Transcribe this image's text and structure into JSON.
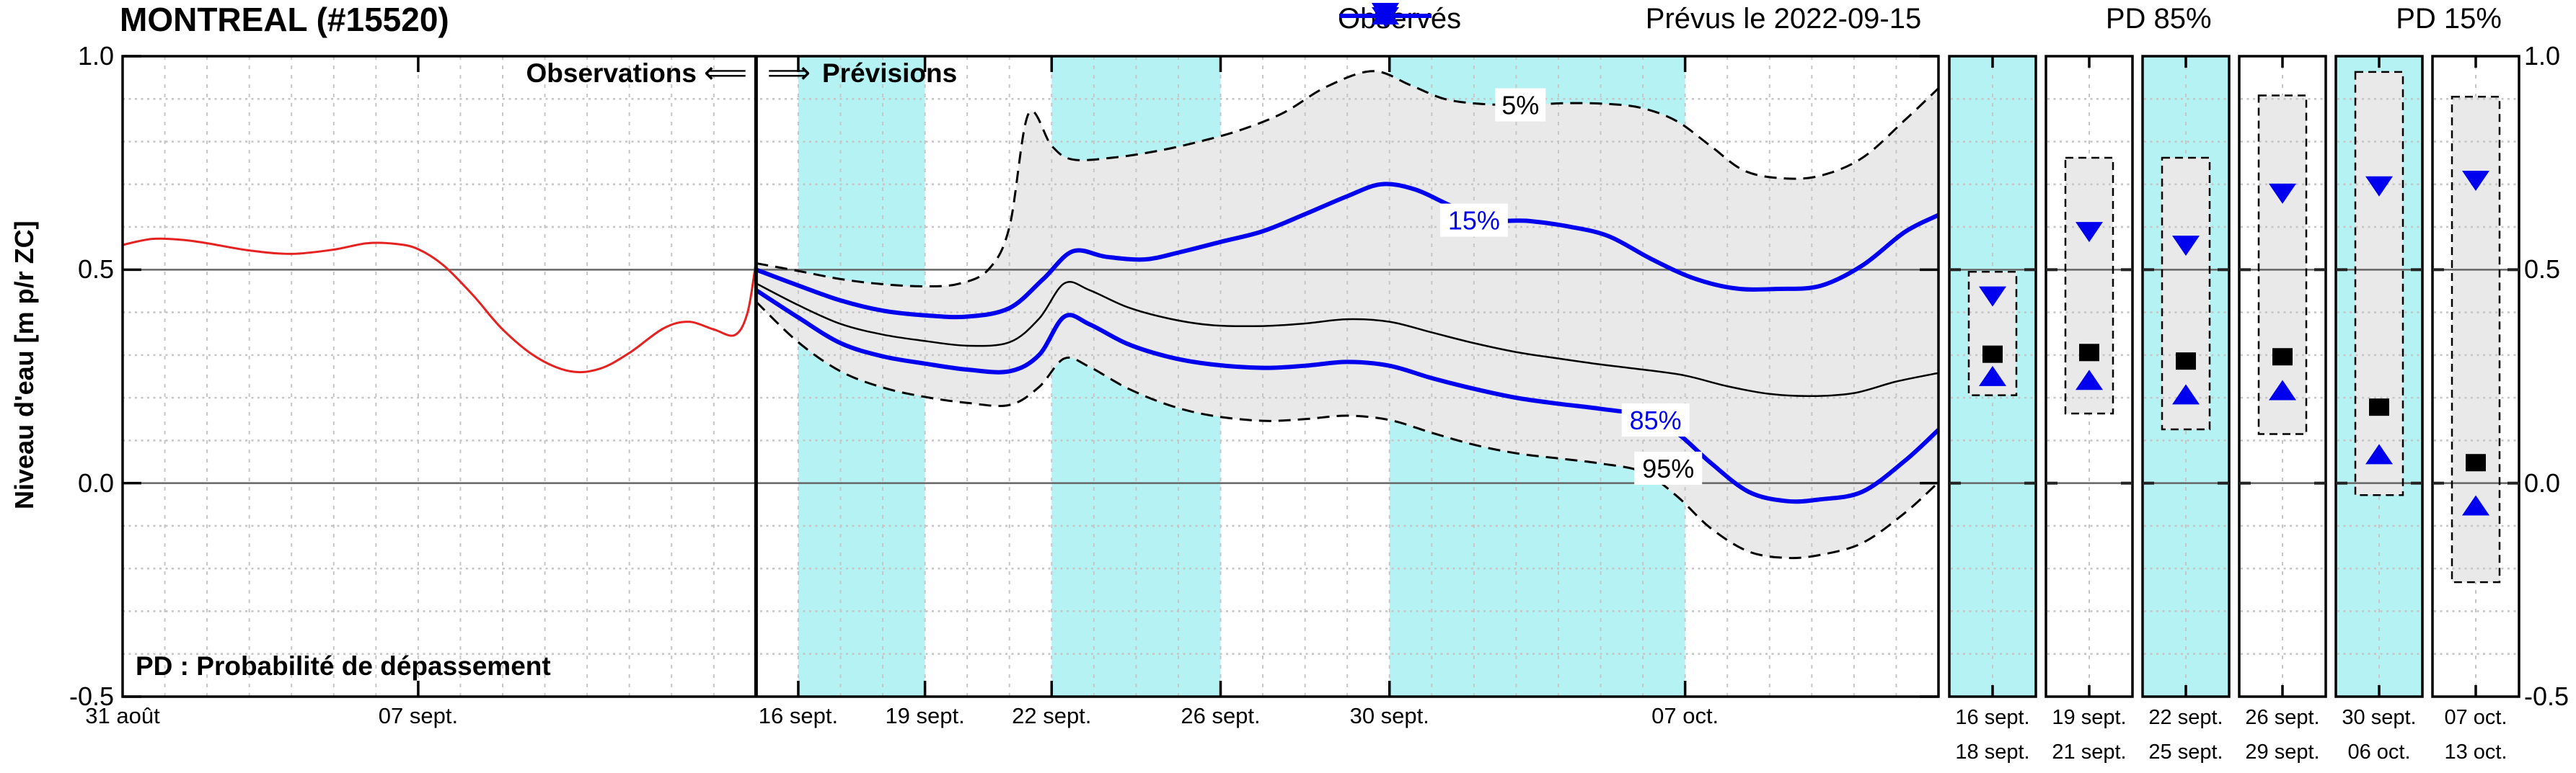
{
  "title": "MONTREAL (#15520)",
  "legend": {
    "items": [
      {
        "label": "Observés",
        "marker": "line",
        "color": "#e62220"
      },
      {
        "label": "Prévus le 2022-09-15",
        "marker": "square",
        "color": "#000000"
      },
      {
        "label": "PD 85%",
        "marker": "triangle-up",
        "color": "#0000ee"
      },
      {
        "label": "PD 15%",
        "marker": "triangle-down",
        "color": "#0000ee"
      }
    ]
  },
  "annotations": {
    "observations": "Observations",
    "arrow_left": "⟸",
    "arrow_right": "⟹",
    "previsions": "Prévisions",
    "pd_note": "PD : Probabilité de dépassement"
  },
  "y_axis": {
    "title": "Niveau d'eau [m p/r ZC]",
    "ticks": [
      {
        "label": "1.0",
        "value": 1.0
      },
      {
        "label": "0.5",
        "value": 0.5
      },
      {
        "label": "0.0",
        "value": 0.0
      },
      {
        "label": "-0.5",
        "value": -0.5
      }
    ]
  },
  "x_axis": {
    "ticks": [
      {
        "label": "31 août",
        "day": 0
      },
      {
        "label": "07 sept.",
        "day": 7
      },
      {
        "label": "16 sept.",
        "day": 16
      },
      {
        "label": "19 sept.",
        "day": 19
      },
      {
        "label": "22 sept.",
        "day": 22
      },
      {
        "label": "26 sept.",
        "day": 26
      },
      {
        "label": "30 sept.",
        "day": 30
      },
      {
        "label": "07 oct.",
        "day": 37
      }
    ]
  },
  "panels": [
    {
      "label_top": "16 sept.",
      "label_bottom": "18 sept.",
      "bg": "cyan",
      "p5": 0.495,
      "p15": 0.437,
      "median": 0.302,
      "p85": 0.251,
      "p95": 0.206
    },
    {
      "label_top": "19 sept.",
      "label_bottom": "21 sept.",
      "bg": "white",
      "p5": 0.762,
      "p15": 0.588,
      "median": 0.306,
      "p85": 0.242,
      "p95": 0.163
    },
    {
      "label_top": "22 sept.",
      "label_bottom": "25 sept.",
      "bg": "cyan",
      "p5": 0.762,
      "p15": 0.556,
      "median": 0.286,
      "p85": 0.208,
      "p95": 0.126
    },
    {
      "label_top": "26 sept.",
      "label_bottom": "29 sept.",
      "bg": "white",
      "p5": 0.908,
      "p15": 0.678,
      "median": 0.296,
      "p85": 0.218,
      "p95": 0.115
    },
    {
      "label_top": "30 sept.",
      "label_bottom": "06 oct.",
      "bg": "cyan",
      "p5": 0.963,
      "p15": 0.695,
      "median": 0.178,
      "p85": 0.068,
      "p95": -0.028
    },
    {
      "label_top": "07 oct.",
      "label_bottom": "13 oct.",
      "bg": "white",
      "p5": 0.905,
      "p15": 0.708,
      "median": 0.048,
      "p85": -0.052,
      "p95": -0.232
    }
  ],
  "colors": {
    "observed": "#e62220",
    "forecast_blue": "#0000ee",
    "black": "#000000",
    "cyan_band": "#b5f2f4",
    "gray_fill": "#e9e9e9",
    "grid": "#c6c6c6",
    "solid_gridline": "#666666"
  },
  "chart_data": {
    "type": "line",
    "title": "MONTREAL (#15520)",
    "ylabel": "Niveau d'eau [m p/r ZC]",
    "ylim": [
      -0.5,
      1.0
    ],
    "x_unit": "days since 2022-08-31",
    "x_range_days": [
      0,
      43
    ],
    "forecast_issue_day": 15,
    "forecast_issue_date": "2022-09-15",
    "grid": "on",
    "legend_position": "top-right",
    "highlight_bands_days": [
      [
        16,
        19
      ],
      [
        22,
        26
      ],
      [
        30,
        37
      ]
    ],
    "curve_labels": [
      {
        "text": "5%",
        "day": 33.1,
        "value": 0.886,
        "color": "#000000",
        "w": 70
      },
      {
        "text": "15%",
        "day": 32.0,
        "value": 0.616,
        "color": "#0000ee",
        "w": 94
      },
      {
        "text": "85%",
        "day": 36.3,
        "value": 0.148,
        "color": "#0000ee",
        "w": 94
      },
      {
        "text": "95%",
        "day": 36.6,
        "value": 0.035,
        "color": "#000000",
        "w": 94
      }
    ],
    "series": [
      {
        "name": "Observés",
        "role": "observed",
        "color": "#e62220",
        "width": 3,
        "style": "solid",
        "points": [
          [
            0,
            0.558
          ],
          [
            0.7,
            0.572
          ],
          [
            1.4,
            0.57
          ],
          [
            2,
            0.562
          ],
          [
            3,
            0.545
          ],
          [
            4,
            0.537
          ],
          [
            5,
            0.547
          ],
          [
            5.8,
            0.562
          ],
          [
            6.5,
            0.56
          ],
          [
            7,
            0.548
          ],
          [
            7.6,
            0.51
          ],
          [
            8.3,
            0.44
          ],
          [
            9,
            0.36
          ],
          [
            9.8,
            0.295
          ],
          [
            10.6,
            0.262
          ],
          [
            11.3,
            0.268
          ],
          [
            12,
            0.305
          ],
          [
            12.8,
            0.362
          ],
          [
            13.4,
            0.378
          ],
          [
            14,
            0.36
          ],
          [
            14.5,
            0.347
          ],
          [
            14.8,
            0.4
          ],
          [
            15,
            0.52
          ]
        ]
      },
      {
        "name": "5%",
        "role": "p5",
        "color": "#000000",
        "width": 3,
        "style": "dashed",
        "points": [
          [
            15,
            0.515
          ],
          [
            16,
            0.497
          ],
          [
            17,
            0.478
          ],
          [
            18,
            0.466
          ],
          [
            19,
            0.461
          ],
          [
            19.8,
            0.467
          ],
          [
            20.5,
            0.5
          ],
          [
            21,
            0.6
          ],
          [
            21.45,
            0.865
          ],
          [
            22,
            0.79
          ],
          [
            22.5,
            0.758
          ],
          [
            23.5,
            0.763
          ],
          [
            24.5,
            0.778
          ],
          [
            25.5,
            0.8
          ],
          [
            26.5,
            0.828
          ],
          [
            27.5,
            0.868
          ],
          [
            28.5,
            0.928
          ],
          [
            29.6,
            0.965
          ],
          [
            30.5,
            0.932
          ],
          [
            31.3,
            0.9
          ],
          [
            32.2,
            0.888
          ],
          [
            33.2,
            0.886
          ],
          [
            34.2,
            0.89
          ],
          [
            35.2,
            0.888
          ],
          [
            36,
            0.878
          ],
          [
            36.8,
            0.848
          ],
          [
            37.6,
            0.79
          ],
          [
            38.4,
            0.732
          ],
          [
            39.3,
            0.714
          ],
          [
            40.2,
            0.72
          ],
          [
            41.2,
            0.762
          ],
          [
            42.2,
            0.85
          ],
          [
            43,
            0.925
          ]
        ]
      },
      {
        "name": "15%",
        "role": "p15",
        "color": "#0000ee",
        "width": 6,
        "style": "solid",
        "points": [
          [
            15,
            0.5
          ],
          [
            16,
            0.463
          ],
          [
            17,
            0.428
          ],
          [
            18,
            0.404
          ],
          [
            19,
            0.393
          ],
          [
            20,
            0.39
          ],
          [
            21,
            0.41
          ],
          [
            21.8,
            0.478
          ],
          [
            22.5,
            0.543
          ],
          [
            23.3,
            0.53
          ],
          [
            24.2,
            0.524
          ],
          [
            25,
            0.54
          ],
          [
            26,
            0.565
          ],
          [
            27,
            0.59
          ],
          [
            28,
            0.63
          ],
          [
            29,
            0.672
          ],
          [
            29.8,
            0.7
          ],
          [
            30.6,
            0.688
          ],
          [
            31.5,
            0.648
          ],
          [
            32.4,
            0.617
          ],
          [
            33.3,
            0.614
          ],
          [
            34.3,
            0.6
          ],
          [
            35.2,
            0.578
          ],
          [
            36.2,
            0.525
          ],
          [
            37.2,
            0.48
          ],
          [
            38.2,
            0.456
          ],
          [
            39.2,
            0.455
          ],
          [
            40.2,
            0.462
          ],
          [
            41.2,
            0.51
          ],
          [
            42.2,
            0.588
          ],
          [
            43,
            0.628
          ]
        ]
      },
      {
        "name": "Prévus le 2022-09-15",
        "role": "median",
        "color": "#000000",
        "width": 2.5,
        "style": "solid",
        "points": [
          [
            15,
            0.468
          ],
          [
            16,
            0.417
          ],
          [
            17,
            0.373
          ],
          [
            18,
            0.348
          ],
          [
            19,
            0.333
          ],
          [
            20,
            0.322
          ],
          [
            21,
            0.33
          ],
          [
            21.7,
            0.385
          ],
          [
            22.3,
            0.468
          ],
          [
            22.9,
            0.452
          ],
          [
            23.8,
            0.412
          ],
          [
            24.8,
            0.385
          ],
          [
            25.8,
            0.37
          ],
          [
            27,
            0.368
          ],
          [
            28,
            0.374
          ],
          [
            29,
            0.384
          ],
          [
            30,
            0.378
          ],
          [
            31,
            0.353
          ],
          [
            32,
            0.328
          ],
          [
            33,
            0.307
          ],
          [
            34,
            0.292
          ],
          [
            35,
            0.278
          ],
          [
            36,
            0.266
          ],
          [
            37,
            0.252
          ],
          [
            38,
            0.227
          ],
          [
            39,
            0.209
          ],
          [
            40,
            0.204
          ],
          [
            41,
            0.211
          ],
          [
            42,
            0.238
          ],
          [
            43,
            0.258
          ]
        ]
      },
      {
        "name": "85%",
        "role": "p85",
        "color": "#0000ee",
        "width": 6,
        "style": "solid",
        "points": [
          [
            15,
            0.452
          ],
          [
            16,
            0.388
          ],
          [
            17,
            0.328
          ],
          [
            18,
            0.297
          ],
          [
            19,
            0.28
          ],
          [
            20,
            0.266
          ],
          [
            21,
            0.262
          ],
          [
            21.7,
            0.3
          ],
          [
            22.3,
            0.39
          ],
          [
            22.9,
            0.372
          ],
          [
            23.8,
            0.326
          ],
          [
            24.8,
            0.295
          ],
          [
            25.8,
            0.278
          ],
          [
            27,
            0.27
          ],
          [
            28,
            0.275
          ],
          [
            29,
            0.284
          ],
          [
            30,
            0.275
          ],
          [
            31,
            0.246
          ],
          [
            32,
            0.221
          ],
          [
            33,
            0.2
          ],
          [
            34,
            0.186
          ],
          [
            35,
            0.174
          ],
          [
            36,
            0.158
          ],
          [
            36.8,
            0.118
          ],
          [
            37.6,
            0.048
          ],
          [
            38.5,
            -0.02
          ],
          [
            39.4,
            -0.042
          ],
          [
            40.2,
            -0.038
          ],
          [
            41.2,
            -0.02
          ],
          [
            42.2,
            0.052
          ],
          [
            43,
            0.125
          ]
        ]
      },
      {
        "name": "95%",
        "role": "p95",
        "color": "#000000",
        "width": 3,
        "style": "dashed",
        "points": [
          [
            15,
            0.425
          ],
          [
            16,
            0.33
          ],
          [
            17,
            0.262
          ],
          [
            18,
            0.224
          ],
          [
            19,
            0.202
          ],
          [
            20,
            0.188
          ],
          [
            21,
            0.183
          ],
          [
            21.7,
            0.225
          ],
          [
            22.3,
            0.292
          ],
          [
            22.9,
            0.272
          ],
          [
            23.8,
            0.222
          ],
          [
            24.8,
            0.182
          ],
          [
            25.8,
            0.158
          ],
          [
            27,
            0.146
          ],
          [
            28,
            0.15
          ],
          [
            29,
            0.158
          ],
          [
            30,
            0.148
          ],
          [
            31,
            0.118
          ],
          [
            32,
            0.09
          ],
          [
            33,
            0.07
          ],
          [
            34,
            0.058
          ],
          [
            35,
            0.046
          ],
          [
            36,
            0.026
          ],
          [
            36.8,
            -0.03
          ],
          [
            37.6,
            -0.105
          ],
          [
            38.5,
            -0.16
          ],
          [
            39.4,
            -0.175
          ],
          [
            40.2,
            -0.168
          ],
          [
            41.2,
            -0.14
          ],
          [
            42.2,
            -0.07
          ],
          [
            43,
            0.002
          ]
        ]
      }
    ]
  }
}
